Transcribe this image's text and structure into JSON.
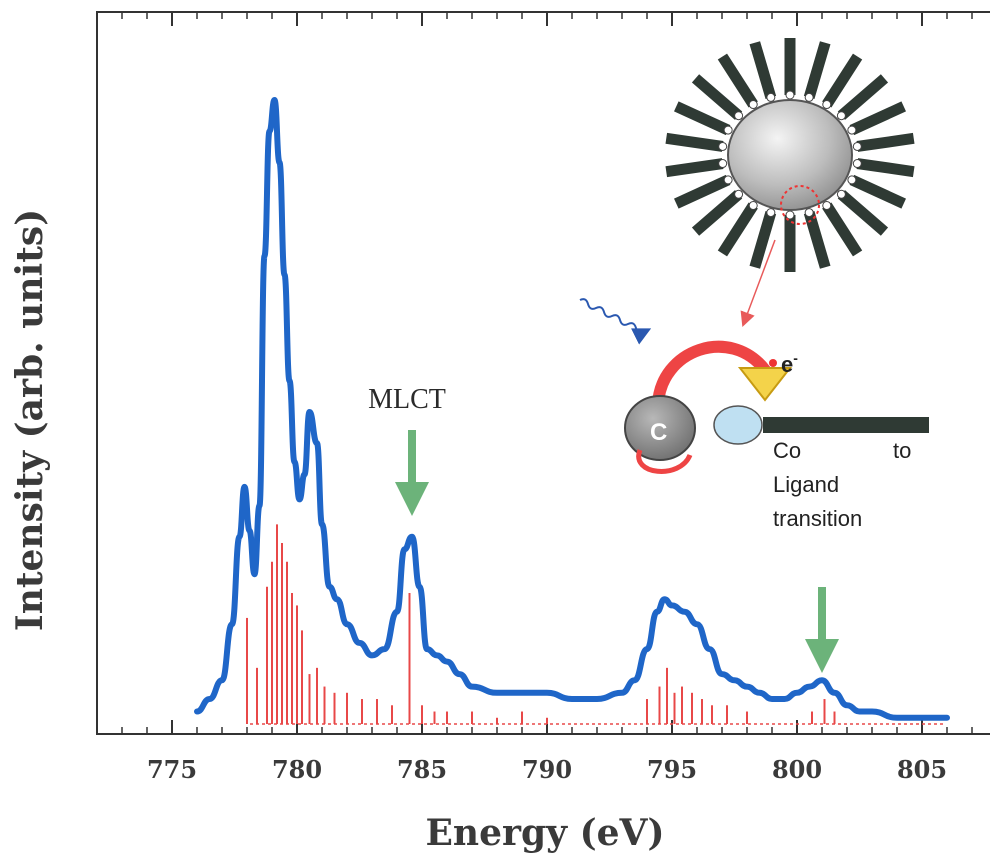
{
  "chart_data": {
    "type": "line",
    "xlabel": "Energy (eV)",
    "ylabel": "Intensity (arb. units)",
    "xlim": [
      772,
      808
    ],
    "ylim": [
      0,
      1.0
    ],
    "x_ticks": [
      775,
      780,
      785,
      790,
      795,
      800,
      805
    ],
    "series": [
      {
        "x": [
          776,
          776.5,
          777,
          777.4,
          777.7,
          777.9,
          778.1,
          778.3,
          778.5,
          778.7,
          778.9,
          779.1,
          779.3,
          779.5,
          779.7,
          779.9,
          780.1,
          780.3,
          780.5,
          780.8,
          781.0,
          781.3,
          781.6,
          782.0,
          782.5,
          783.0,
          783.5,
          784.0,
          784.3,
          784.6,
          784.9,
          785.2,
          785.6,
          786.0,
          786.5,
          787.0,
          788.0,
          789.0,
          790.0,
          791.0,
          792.0,
          793.0,
          793.5,
          794.0,
          794.4,
          794.7,
          795.0,
          795.5,
          796.0,
          796.5,
          797.0,
          797.5,
          798.0,
          798.5,
          799.0,
          799.5,
          800.0,
          800.5,
          801.0,
          801.5,
          802.0,
          802.5,
          803.0,
          804.0,
          805.0,
          806.0
        ],
        "values": [
          0.02,
          0.04,
          0.07,
          0.16,
          0.3,
          0.38,
          0.31,
          0.24,
          0.35,
          0.75,
          0.95,
          1.0,
          0.9,
          0.72,
          0.55,
          0.42,
          0.36,
          0.4,
          0.5,
          0.45,
          0.32,
          0.22,
          0.2,
          0.16,
          0.13,
          0.11,
          0.12,
          0.18,
          0.28,
          0.3,
          0.22,
          0.12,
          0.11,
          0.1,
          0.08,
          0.06,
          0.05,
          0.05,
          0.05,
          0.04,
          0.04,
          0.05,
          0.07,
          0.12,
          0.18,
          0.2,
          0.19,
          0.18,
          0.16,
          0.12,
          0.08,
          0.07,
          0.06,
          0.05,
          0.04,
          0.04,
          0.05,
          0.06,
          0.07,
          0.05,
          0.03,
          0.02,
          0.02,
          0.01,
          0.01,
          0.01
        ],
        "color": "#1f66c8"
      }
    ],
    "stick_spectrum": {
      "color": "#e84848",
      "x": [
        778.0,
        778.4,
        778.8,
        779.0,
        779.2,
        779.4,
        779.6,
        779.8,
        780.0,
        780.2,
        780.5,
        780.8,
        781.1,
        781.5,
        782.0,
        782.6,
        783.2,
        783.8,
        784.5,
        785.0,
        785.5,
        786.0,
        787.0,
        788.0,
        789.0,
        790.0,
        794.0,
        794.5,
        794.8,
        795.1,
        795.4,
        795.8,
        796.2,
        796.6,
        797.2,
        798.0,
        800.6,
        801.1,
        801.5
      ],
      "values": [
        0.17,
        0.09,
        0.22,
        0.26,
        0.32,
        0.29,
        0.26,
        0.21,
        0.19,
        0.15,
        0.08,
        0.09,
        0.06,
        0.05,
        0.05,
        0.04,
        0.04,
        0.03,
        0.21,
        0.03,
        0.02,
        0.02,
        0.02,
        0.01,
        0.02,
        0.01,
        0.04,
        0.06,
        0.09,
        0.05,
        0.06,
        0.05,
        0.04,
        0.03,
        0.03,
        0.02,
        0.02,
        0.04,
        0.02
      ]
    },
    "annotations": [
      {
        "text": "MLCT",
        "x": 784.6,
        "arrow_color": "#6cb37a"
      },
      {
        "text": "",
        "x": 801.0,
        "arrow_color": "#6cb37a"
      }
    ]
  },
  "inset": {
    "particle_label": "C",
    "electron_label": "e",
    "electron_superscript": "-",
    "caption_words": [
      "Co",
      "to"
    ],
    "caption_lines": [
      "Ligand",
      "transition"
    ]
  }
}
